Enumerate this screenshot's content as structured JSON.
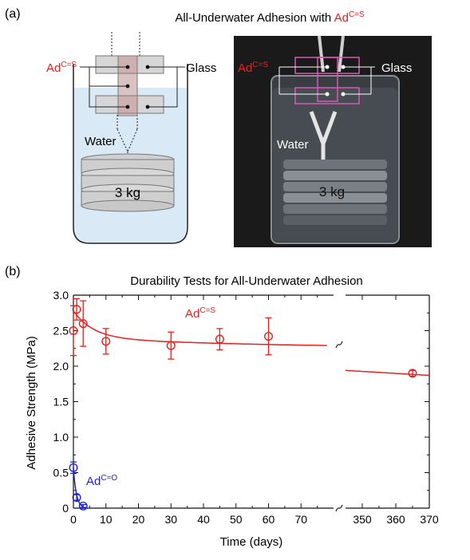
{
  "panel_a": {
    "label": "(a)",
    "title_prefix": "All-Underwater Adhesion with ",
    "title_ad": "Ad",
    "title_sup": "C=S",
    "diagram_ad": "Ad",
    "diagram_ad_sup": "C=S",
    "diagram_glass": "Glass",
    "diagram_water": "Water",
    "diagram_weight": "3 kg",
    "photo_ad": "Ad",
    "photo_ad_sup": "C=S",
    "photo_glass": "Glass",
    "photo_water": "Water",
    "photo_weight": "3 kg"
  },
  "panel_b": {
    "label": "(b)"
  },
  "colors": {
    "red": "#e8201c",
    "blue": "#1f23d6"
  },
  "chart_data": {
    "type": "scatter",
    "title": "Durability Tests for All-Underwater Adhesion",
    "xlabel": "Time (days)",
    "ylabel": "Adhesive Strength (MPa)",
    "xlim": [
      0,
      370
    ],
    "x_break": [
      80,
      345
    ],
    "ylim": [
      0,
      3.0
    ],
    "x_ticks_left": [
      "0",
      "10",
      "20",
      "30",
      "40",
      "50",
      "60",
      "70"
    ],
    "x_ticks_right": [
      "350",
      "360",
      "370"
    ],
    "y_ticks": [
      "0",
      "0.5",
      "1.0",
      "1.5",
      "2.0",
      "2.5",
      "3.0"
    ],
    "series": [
      {
        "name": "Ad",
        "name_sup": "C=S",
        "color": "#e8201c",
        "x": [
          0,
          1,
          3,
          10,
          30,
          45,
          60,
          365
        ],
        "y": [
          2.5,
          2.8,
          2.6,
          2.35,
          2.29,
          2.38,
          2.42,
          1.9
        ],
        "err": [
          0.35,
          0.15,
          0.32,
          0.18,
          0.19,
          0.15,
          0.26,
          0.04
        ]
      },
      {
        "name": "Ad",
        "name_sup": "C=O",
        "color": "#1f23d6",
        "x": [
          0,
          1,
          3
        ],
        "y": [
          0.57,
          0.15,
          0.03
        ],
        "err": [
          0.08,
          0.04,
          0.02
        ]
      }
    ],
    "fit_curves": [
      {
        "series": "Ad C=S",
        "color": "#e8201c",
        "x_range": [
          0,
          370
        ]
      },
      {
        "series": "Ad C=O",
        "color": "#1f23d6",
        "x_range": [
          0,
          3
        ]
      }
    ]
  }
}
